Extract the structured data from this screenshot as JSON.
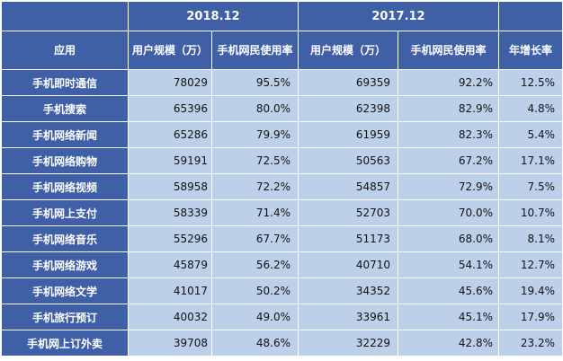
{
  "header": {
    "period_2018": "2018.12",
    "period_2017": "2017.12",
    "col_app": "应用",
    "col_users_2018": "用户规模（万）",
    "col_rate_2018": "手机网民使用率",
    "col_users_2017": "用户规模（万）",
    "col_rate_2017": "手机网民使用率",
    "col_growth": "年增长率"
  },
  "rows": [
    {
      "app": "手机即时通信",
      "users_2018": "78029",
      "rate_2018": "95.5%",
      "users_2017": "69359",
      "rate_2017": "92.2%",
      "growth": "12.5%"
    },
    {
      "app": "手机搜索",
      "users_2018": "65396",
      "rate_2018": "80.0%",
      "users_2017": "62398",
      "rate_2017": "82.9%",
      "growth": "4.8%"
    },
    {
      "app": "手机网络新闻",
      "users_2018": "65286",
      "rate_2018": "79.9%",
      "users_2017": "61959",
      "rate_2017": "82.3%",
      "growth": "5.4%"
    },
    {
      "app": "手机网络购物",
      "users_2018": "59191",
      "rate_2018": "72.5%",
      "users_2017": "50563",
      "rate_2017": "67.2%",
      "growth": "17.1%"
    },
    {
      "app": "手机网络视频",
      "users_2018": "58958",
      "rate_2018": "72.2%",
      "users_2017": "54857",
      "rate_2017": "72.9%",
      "growth": "7.5%"
    },
    {
      "app": "手机网上支付",
      "users_2018": "58339",
      "rate_2018": "71.4%",
      "users_2017": "52703",
      "rate_2017": "70.0%",
      "growth": "10.7%"
    },
    {
      "app": "手机网络音乐",
      "users_2018": "55296",
      "rate_2018": "67.7%",
      "users_2017": "51173",
      "rate_2017": "68.0%",
      "growth": "8.1%"
    },
    {
      "app": "手机网络游戏",
      "users_2018": "45879",
      "rate_2018": "56.2%",
      "users_2017": "40710",
      "rate_2017": "54.1%",
      "growth": "12.7%"
    },
    {
      "app": "手机网络文学",
      "users_2018": "41017",
      "rate_2018": "50.2%",
      "users_2017": "34352",
      "rate_2017": "45.6%",
      "growth": "19.4%"
    },
    {
      "app": "手机旅行预订",
      "users_2018": "40032",
      "rate_2018": "49.0%",
      "users_2017": "33961",
      "rate_2017": "45.1%",
      "growth": "17.9%"
    },
    {
      "app": "手机网上订外卖",
      "users_2018": "39708",
      "rate_2018": "48.6%",
      "users_2017": "32229",
      "rate_2017": "42.8%",
      "growth": "23.2%"
    }
  ]
}
